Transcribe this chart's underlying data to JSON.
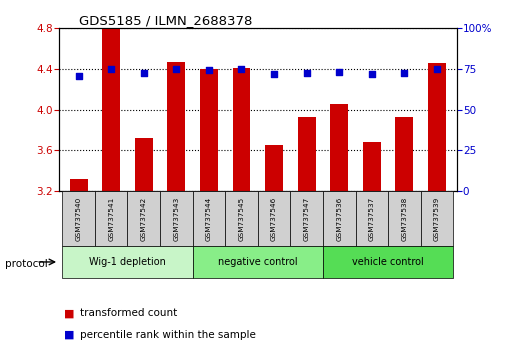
{
  "title": "GDS5185 / ILMN_2688378",
  "samples": [
    "GSM737540",
    "GSM737541",
    "GSM737542",
    "GSM737543",
    "GSM737544",
    "GSM737545",
    "GSM737546",
    "GSM737547",
    "GSM737536",
    "GSM737537",
    "GSM737538",
    "GSM737539"
  ],
  "bar_values": [
    3.32,
    4.8,
    3.72,
    4.47,
    4.4,
    4.41,
    3.65,
    3.93,
    4.06,
    3.68,
    3.93,
    4.46
  ],
  "dot_values": [
    4.33,
    4.4,
    4.36,
    4.4,
    4.39,
    4.4,
    4.35,
    4.36,
    4.37,
    4.35,
    4.36,
    4.4
  ],
  "bar_color": "#cc0000",
  "dot_color": "#0000cc",
  "ylim_left": [
    3.2,
    4.8
  ],
  "ylim_right": [
    0,
    100
  ],
  "yticks_left": [
    3.2,
    3.6,
    4.0,
    4.4,
    4.8
  ],
  "yticks_right": [
    0,
    25,
    50,
    75,
    100
  ],
  "groups": [
    {
      "label": "Wig-1 depletion",
      "start": 0,
      "end": 4
    },
    {
      "label": "negative control",
      "start": 4,
      "end": 8
    },
    {
      "label": "vehicle control",
      "start": 8,
      "end": 12
    }
  ],
  "group_light_colors": [
    "#ccf5cc",
    "#ccf5cc",
    "#55dd55"
  ],
  "bar_bottom": 3.2,
  "protocol_label": "protocol",
  "legend_bar_label": "transformed count",
  "legend_dot_label": "percentile rank within the sample",
  "bg_color": "#ffffff",
  "tick_label_color_left": "#cc0000",
  "tick_label_color_right": "#0000cc",
  "sample_box_color": "#d0d0d0",
  "group_border_color": "#333333"
}
